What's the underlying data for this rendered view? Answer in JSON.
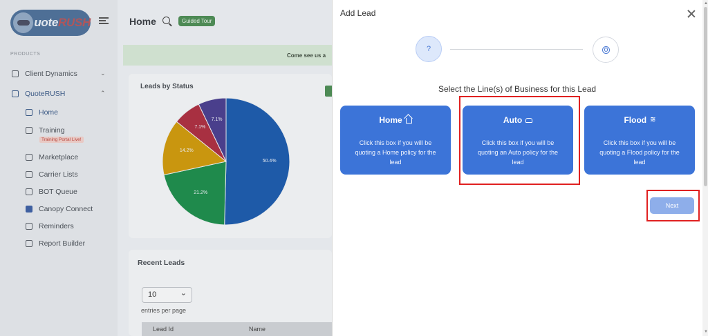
{
  "app": {
    "logo_prefix": "uote",
    "logo_suffix": "RUSH"
  },
  "sidebar": {
    "section_label": "PRODUCTS",
    "items": [
      {
        "label": "Client Dynamics",
        "icon": "lock-icon"
      },
      {
        "label": "QuoteRUSH",
        "icon": "grid-icon"
      },
      {
        "label": "Home",
        "icon": "home-icon"
      },
      {
        "label": "Training",
        "icon": "training-icon",
        "badge": "Training Portal Live!"
      },
      {
        "label": "Marketplace",
        "icon": "store-icon"
      },
      {
        "label": "Carrier Lists",
        "icon": "list-icon"
      },
      {
        "label": "BOT Queue",
        "icon": "robot-icon"
      },
      {
        "label": "Canopy Connect",
        "icon": "canopy-icon"
      },
      {
        "label": "Reminders",
        "icon": "calendar-icon"
      },
      {
        "label": "Report Builder",
        "icon": "document-icon"
      }
    ]
  },
  "header": {
    "title": "Home",
    "guided_tour": "Guided Tour"
  },
  "banner": {
    "text": "Come see us a"
  },
  "leads_by_status": {
    "title": "Leads by Status"
  },
  "chart_data": {
    "type": "pie",
    "title": "Leads by Status",
    "slices": [
      {
        "label": "50.4%",
        "value": 50.4,
        "color": "#1e5aa8"
      },
      {
        "label": "21.2%",
        "value": 21.2,
        "color": "#1f8a4c"
      },
      {
        "label": "14.2%",
        "value": 14.2,
        "color": "#c9960f"
      },
      {
        "label": "7.1%",
        "value": 7.1,
        "color": "#a83041"
      },
      {
        "label": "7.1%",
        "value": 7.1,
        "color": "#4a3f8c"
      }
    ]
  },
  "recent_leads": {
    "title": "Recent Leads",
    "entries_value": "10",
    "entries_label": "entries per page",
    "columns": [
      "Lead Id",
      "Name"
    ]
  },
  "modal": {
    "title": "Add Lead",
    "step1_symbol": "?",
    "heading": "Select the Line(s) of Business for this Lead",
    "cards": [
      {
        "title": "Home",
        "icon": "house-icon",
        "description": "Click this box if you will be quoting a Home policy for the lead"
      },
      {
        "title": "Auto",
        "icon": "car-icon",
        "description": "Click this box if you will be quoting an Auto policy for the lead"
      },
      {
        "title": "Flood",
        "icon": "water-icon",
        "description": "Click this box if you will be quoting a Flood policy for the lead"
      }
    ],
    "next_label": "Next",
    "primary_color": "#3c74d8"
  }
}
